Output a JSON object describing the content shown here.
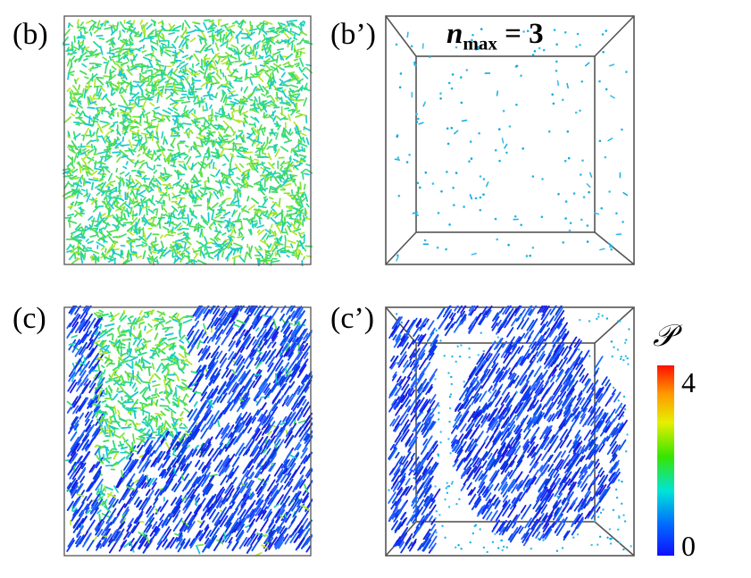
{
  "panels": {
    "b": {
      "label": "(b)"
    },
    "b_prime": {
      "label": "(b’)",
      "annotation": {
        "symbol": "n",
        "subscript": "max",
        "value": "= 3"
      }
    },
    "c": {
      "label": "(c)"
    },
    "c_prime": {
      "label": "(c’)"
    }
  },
  "colorbar": {
    "symbol": "𝒫",
    "max_label": "4",
    "min_label": "0",
    "range": [
      0,
      4
    ],
    "colors": [
      "#1010ff",
      "#0068ff",
      "#00e4d8",
      "#37e500",
      "#e6ef00",
      "#ff9a00",
      "#ff1000"
    ]
  }
}
